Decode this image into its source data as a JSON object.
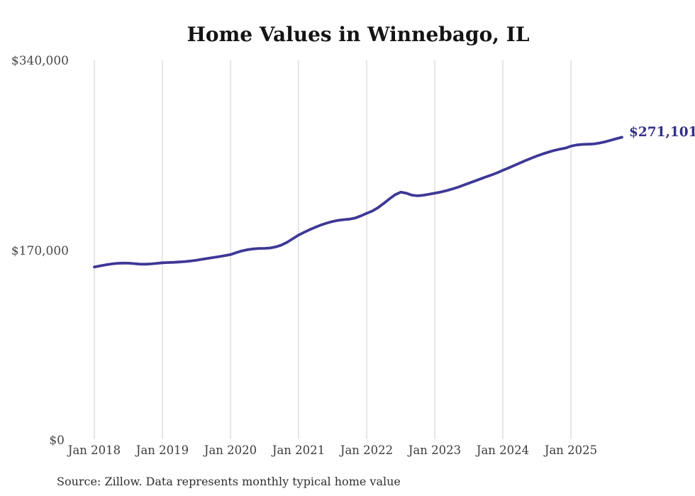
{
  "chart": {
    "title": "Home Values in Winnebago, IL",
    "annotation": "$271,101",
    "source_note": "Source: Zillow. Data represents monthly typical home value"
  },
  "chart_data": {
    "type": "line",
    "title": "Home Values in Winnebago, IL",
    "series_name": "Monthly typical home value",
    "x": [
      "2018-01",
      "2018-02",
      "2018-03",
      "2018-04",
      "2018-05",
      "2018-06",
      "2018-07",
      "2018-08",
      "2018-09",
      "2018-10",
      "2018-11",
      "2018-12",
      "2019-01",
      "2019-02",
      "2019-03",
      "2019-04",
      "2019-05",
      "2019-06",
      "2019-07",
      "2019-08",
      "2019-09",
      "2019-10",
      "2019-11",
      "2019-12",
      "2020-01",
      "2020-02",
      "2020-03",
      "2020-04",
      "2020-05",
      "2020-06",
      "2020-07",
      "2020-08",
      "2020-09",
      "2020-10",
      "2020-11",
      "2020-12",
      "2021-01",
      "2021-02",
      "2021-03",
      "2021-04",
      "2021-05",
      "2021-06",
      "2021-07",
      "2021-08",
      "2021-09",
      "2021-10",
      "2021-11",
      "2021-12",
      "2022-01",
      "2022-02",
      "2022-03",
      "2022-04",
      "2022-05",
      "2022-06",
      "2022-07",
      "2022-08",
      "2022-09",
      "2022-10",
      "2022-11",
      "2022-12",
      "2023-01",
      "2023-02",
      "2023-03",
      "2023-04",
      "2023-05",
      "2023-06",
      "2023-07",
      "2023-08",
      "2023-09",
      "2023-10",
      "2023-11",
      "2023-12",
      "2024-01",
      "2024-02",
      "2024-03",
      "2024-04",
      "2024-05",
      "2024-06",
      "2024-07",
      "2024-08",
      "2024-09",
      "2024-10",
      "2024-11",
      "2024-12",
      "2025-01",
      "2025-02",
      "2025-03",
      "2025-04",
      "2025-05",
      "2025-06",
      "2025-07",
      "2025-08",
      "2025-09",
      "2025-10"
    ],
    "values": [
      154900,
      155900,
      156800,
      157600,
      158200,
      158400,
      158300,
      157900,
      157500,
      157400,
      157700,
      158200,
      158700,
      158900,
      159100,
      159400,
      159800,
      160300,
      161000,
      161800,
      162600,
      163400,
      164200,
      165100,
      166000,
      167700,
      169300,
      170400,
      171100,
      171500,
      171600,
      171900,
      172900,
      174600,
      177100,
      180300,
      183500,
      186000,
      188400,
      190600,
      192600,
      194300,
      195700,
      196700,
      197300,
      197800,
      198800,
      200700,
      203000,
      205000,
      208000,
      211800,
      215800,
      219600,
      221900,
      221000,
      219200,
      218700,
      219200,
      220000,
      221000,
      222000,
      223200,
      224600,
      226200,
      228000,
      229900,
      231800,
      233700,
      235500,
      237300,
      239300,
      241500,
      243600,
      245800,
      248000,
      250200,
      252300,
      254300,
      256100,
      257700,
      259200,
      260400,
      261300,
      263100,
      264200,
      264700,
      264900,
      265100,
      265900,
      267000,
      268400,
      269800,
      271101
    ],
    "end_value": 271101,
    "end_label": "$271,101",
    "xlabel": "",
    "ylabel": "",
    "ylim": [
      0,
      340000
    ],
    "y_ticks": [
      0,
      170000,
      340000
    ],
    "y_tick_labels": [
      "$0",
      "$170,000",
      "$340,000"
    ],
    "x_tick_labels": [
      "Jan 2018",
      "Jan 2019",
      "Jan 2020",
      "Jan 2021",
      "Jan 2022",
      "Jan 2023",
      "Jan 2024",
      "Jan 2025"
    ],
    "grid": "vertical-only",
    "legend": "none",
    "line_color": "#3e3896",
    "annotation_color": "#333187",
    "gridline_color": "#cccccc",
    "source": "Source: Zillow. Data represents monthly typical home value"
  }
}
